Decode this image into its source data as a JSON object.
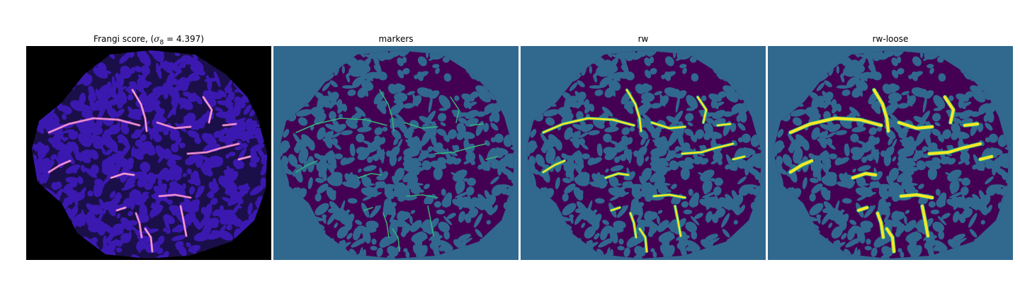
{
  "figure": {
    "panels": [
      {
        "id": "frangi",
        "title_prefix": "Frangi score, (",
        "title_symbol": "σ",
        "title_subscript": "8",
        "title_value": " = 4.397)",
        "colormap": "magma",
        "background": "#000000"
      },
      {
        "id": "markers",
        "title": "markers",
        "colormap": "viridis",
        "background": "#31688e"
      },
      {
        "id": "rw",
        "title": "rw",
        "colormap": "viridis",
        "background": "#31688e"
      },
      {
        "id": "rw-loose",
        "title": "rw-loose",
        "colormap": "viridis",
        "background": "#31688e"
      }
    ]
  },
  "colors": {
    "tissue_dark": "#440154",
    "frangi_tissue": "#1b0f4a",
    "frangi_texture": "#3b19b0",
    "frangi_vessel": "#f07adc",
    "frangi_vessel_hot": "#fdd8b0",
    "marker_vessel": "#35b779",
    "rw_vessel": "#fde725",
    "vessel_outline": "#22a884"
  }
}
